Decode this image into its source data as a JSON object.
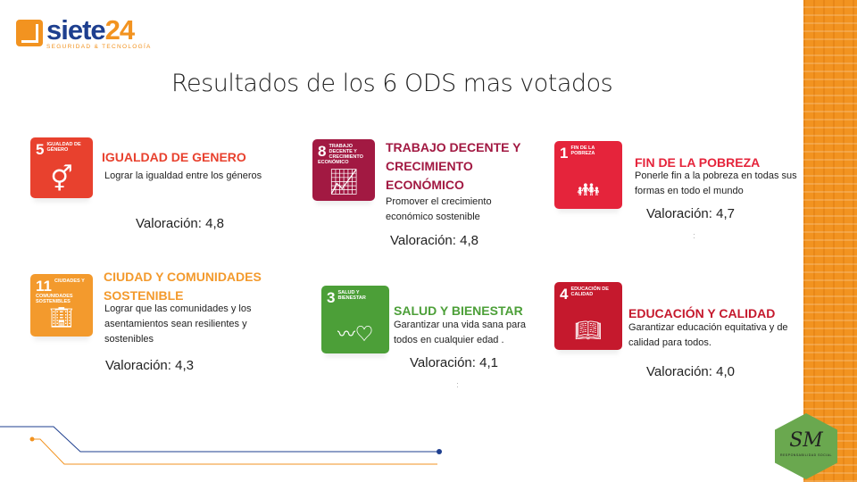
{
  "logo": {
    "name_a": "siete",
    "name_b": "24",
    "tagline": "SEGURIDAD & TECNOLOGÍA"
  },
  "title": "Resultados de los 6 ODS mas votados",
  "cards": [
    {
      "num": "5",
      "tile_label": "Igualdad de género",
      "icon": "gender-equality-icon",
      "color": "#e8412e",
      "title": "IGUALDAD DE GENERO",
      "desc": "Lograr la igualdad  entre los géneros",
      "rating": "Valoración: 4,8"
    },
    {
      "num": "8",
      "tile_label": "Trabajo decente y crecimiento económico",
      "icon": "growth-chart-icon",
      "color": "#a21942",
      "title": "TRABAJO DECENTE Y CRECIMIENTO ECONÓMICO",
      "desc": "Promover el crecimiento económico sostenible",
      "rating": "Valoración: 4,8"
    },
    {
      "num": "1",
      "tile_label": "Fin de la pobreza",
      "icon": "family-icon",
      "color": "#e5243b",
      "title": "FIN DE LA POBREZA",
      "desc": "Ponerle fin a la pobreza en todas sus formas en todo el mundo",
      "rating": "Valoración: 4,7"
    },
    {
      "num": "11",
      "tile_label": "Ciudades y comunidades sostenibles",
      "icon": "city-icon",
      "color": "#f39a2d",
      "title": "CIUDAD Y COMUNIDADES SOSTENIBLE",
      "desc": "Lograr que las comunidades y los asentamientos sean resilientes y sostenibles",
      "rating": "Valoración: 4,3"
    },
    {
      "num": "3",
      "tile_label": "Salud y bienestar",
      "icon": "heartbeat-icon",
      "color": "#4c9f38",
      "title": "SALUD Y BIENESTAR",
      "desc": "Garantizar una vida sana para todos en cualquier edad .",
      "rating": "Valoración: 4,1"
    },
    {
      "num": "4",
      "tile_label": "Educación de calidad",
      "icon": "book-icon",
      "color": "#c5192d",
      "title": "EDUCACIÓN Y CALIDAD",
      "desc": "Garantizar educación equitativa y de calidad para todos.",
      "rating": "Valoración: 4,0"
    }
  ],
  "badge": {
    "initials": "SM",
    "caption": "RESPONSABILIDAD SOCIAL"
  }
}
